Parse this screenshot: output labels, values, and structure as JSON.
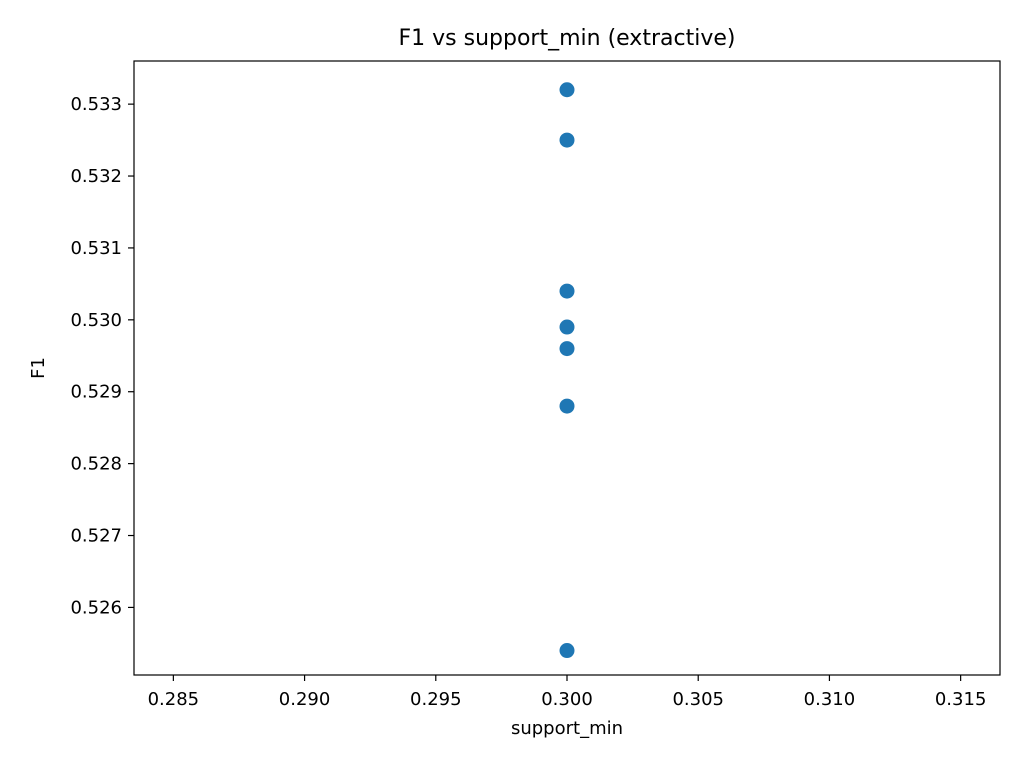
{
  "chart_data": {
    "type": "scatter",
    "title": "F1 vs support_min (extractive)",
    "xlabel": "support_min",
    "ylabel": "F1",
    "xlim": [
      0.2835,
      0.3165
    ],
    "ylim": [
      0.52506,
      0.5336
    ],
    "xticks": [
      0.285,
      0.29,
      0.295,
      0.3,
      0.305,
      0.31,
      0.315
    ],
    "xtick_labels": [
      "0.285",
      "0.290",
      "0.295",
      "0.300",
      "0.305",
      "0.310",
      "0.315"
    ],
    "yticks": [
      0.526,
      0.527,
      0.528,
      0.529,
      0.53,
      0.531,
      0.532,
      0.533
    ],
    "ytick_labels": [
      "0.526",
      "0.527",
      "0.528",
      "0.529",
      "0.530",
      "0.531",
      "0.532",
      "0.533"
    ],
    "grid": false,
    "legend": "none",
    "marker_color": "#1f77b4",
    "points": [
      {
        "x": 0.3,
        "y": 0.5332
      },
      {
        "x": 0.3,
        "y": 0.5325
      },
      {
        "x": 0.3,
        "y": 0.5304
      },
      {
        "x": 0.3,
        "y": 0.5299
      },
      {
        "x": 0.3,
        "y": 0.5296
      },
      {
        "x": 0.3,
        "y": 0.5288
      },
      {
        "x": 0.3,
        "y": 0.5254
      }
    ]
  }
}
